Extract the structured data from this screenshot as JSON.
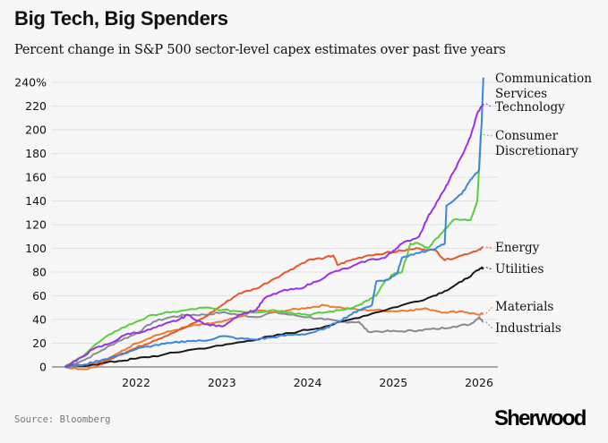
{
  "header": {
    "title": "Big Tech, Big Spenders",
    "subtitle": "Percent change in S&P 500 sector-level capex estimates over past five years"
  },
  "footer": {
    "source": "Source: Bloomberg",
    "logo": "Sherwood"
  },
  "chart_data": {
    "type": "line",
    "title": "Big Tech, Big Spenders",
    "subtitle": "Percent change in S&P 500 sector-level capex estimates over past five years",
    "xlabel": "",
    "ylabel": "",
    "xlim": [
      2021.17,
      2026.1
    ],
    "ylim": [
      0,
      240
    ],
    "x_ticks": [
      2022,
      2023,
      2024,
      2025,
      2026
    ],
    "x_tick_labels": [
      "2022",
      "2023",
      "2024",
      "2025",
      "2026"
    ],
    "y_ticks": [
      0,
      20,
      40,
      60,
      80,
      100,
      120,
      140,
      160,
      180,
      200,
      220,
      240
    ],
    "y_tick_labels": [
      "0",
      "20",
      "40",
      "60",
      "80",
      "100",
      "120",
      "140",
      "160",
      "180",
      "200",
      "220",
      "240%"
    ],
    "grid": true,
    "legend": "direct-labels-right",
    "series": [
      {
        "name": "Communication Services",
        "label_lines": [
          "Communication",
          "Services"
        ],
        "color": "#3a86e0",
        "points": [
          [
            2021.17,
            0
          ],
          [
            2021.4,
            2
          ],
          [
            2021.6,
            6
          ],
          [
            2021.8,
            10
          ],
          [
            2022.0,
            15
          ],
          [
            2022.2,
            18
          ],
          [
            2022.4,
            20
          ],
          [
            2022.6,
            22
          ],
          [
            2022.8,
            22
          ],
          [
            2023.0,
            26
          ],
          [
            2023.2,
            24
          ],
          [
            2023.4,
            23
          ],
          [
            2023.6,
            25
          ],
          [
            2023.8,
            27
          ],
          [
            2024.0,
            28
          ],
          [
            2024.2,
            32
          ],
          [
            2024.35,
            38
          ],
          [
            2024.5,
            44
          ],
          [
            2024.6,
            48
          ],
          [
            2024.75,
            52
          ],
          [
            2024.8,
            72
          ],
          [
            2024.95,
            74
          ],
          [
            2025.05,
            80
          ],
          [
            2025.1,
            92
          ],
          [
            2025.3,
            96
          ],
          [
            2025.5,
            100
          ],
          [
            2025.6,
            104
          ],
          [
            2025.62,
            136
          ],
          [
            2025.8,
            146
          ],
          [
            2025.9,
            158
          ],
          [
            2026.0,
            166
          ],
          [
            2026.03,
            206
          ],
          [
            2026.05,
            244
          ]
        ]
      },
      {
        "name": "Technology",
        "label_lines": [
          "Technology"
        ],
        "color": "#9b30e8",
        "points": [
          [
            2021.17,
            0
          ],
          [
            2021.3,
            5
          ],
          [
            2021.5,
            15
          ],
          [
            2021.7,
            20
          ],
          [
            2021.9,
            28
          ],
          [
            2022.1,
            30
          ],
          [
            2022.3,
            35
          ],
          [
            2022.5,
            40
          ],
          [
            2022.6,
            44
          ],
          [
            2022.8,
            36
          ],
          [
            2023.0,
            34
          ],
          [
            2023.2,
            44
          ],
          [
            2023.4,
            48
          ],
          [
            2023.5,
            58
          ],
          [
            2023.7,
            64
          ],
          [
            2023.9,
            66
          ],
          [
            2024.1,
            72
          ],
          [
            2024.3,
            80
          ],
          [
            2024.5,
            84
          ],
          [
            2024.7,
            90
          ],
          [
            2024.9,
            92
          ],
          [
            2025.0,
            98
          ],
          [
            2025.1,
            104
          ],
          [
            2025.3,
            110
          ],
          [
            2025.4,
            126
          ],
          [
            2025.5,
            138
          ],
          [
            2025.6,
            150
          ],
          [
            2025.7,
            164
          ],
          [
            2025.8,
            178
          ],
          [
            2025.9,
            194
          ],
          [
            2025.98,
            214
          ],
          [
            2026.05,
            222
          ]
        ]
      },
      {
        "name": "Consumer Discretionary",
        "label_lines": [
          "Consumer",
          "Discretionary"
        ],
        "color": "#56d13a",
        "points": [
          [
            2021.17,
            0
          ],
          [
            2021.35,
            8
          ],
          [
            2021.55,
            20
          ],
          [
            2021.75,
            30
          ],
          [
            2022.0,
            38
          ],
          [
            2022.2,
            44
          ],
          [
            2022.4,
            46
          ],
          [
            2022.6,
            48
          ],
          [
            2022.8,
            50
          ],
          [
            2023.0,
            48
          ],
          [
            2023.2,
            47
          ],
          [
            2023.4,
            46
          ],
          [
            2023.6,
            48
          ],
          [
            2023.8,
            46
          ],
          [
            2024.0,
            44
          ],
          [
            2024.2,
            46
          ],
          [
            2024.4,
            48
          ],
          [
            2024.6,
            52
          ],
          [
            2024.7,
            56
          ],
          [
            2024.8,
            60
          ],
          [
            2024.9,
            72
          ],
          [
            2025.0,
            78
          ],
          [
            2025.1,
            80
          ],
          [
            2025.2,
            104
          ],
          [
            2025.3,
            104
          ],
          [
            2025.4,
            100
          ],
          [
            2025.55,
            112
          ],
          [
            2025.7,
            124
          ],
          [
            2025.9,
            124
          ],
          [
            2025.98,
            140
          ],
          [
            2026.02,
            196
          ]
        ]
      },
      {
        "name": "Energy",
        "label_lines": [
          "Energy"
        ],
        "color": "#e8572a",
        "points": [
          [
            2021.17,
            0
          ],
          [
            2021.4,
            2
          ],
          [
            2021.6,
            4
          ],
          [
            2021.8,
            10
          ],
          [
            2022.0,
            16
          ],
          [
            2022.2,
            22
          ],
          [
            2022.4,
            28
          ],
          [
            2022.6,
            34
          ],
          [
            2022.8,
            42
          ],
          [
            2023.0,
            52
          ],
          [
            2023.2,
            62
          ],
          [
            2023.4,
            66
          ],
          [
            2023.6,
            74
          ],
          [
            2023.8,
            82
          ],
          [
            2024.0,
            90
          ],
          [
            2024.2,
            92
          ],
          [
            2024.3,
            94
          ],
          [
            2024.35,
            86
          ],
          [
            2024.5,
            90
          ],
          [
            2024.7,
            94
          ],
          [
            2024.9,
            96
          ],
          [
            2025.1,
            98
          ],
          [
            2025.3,
            100
          ],
          [
            2025.5,
            98
          ],
          [
            2025.6,
            90
          ],
          [
            2025.8,
            94
          ],
          [
            2026.0,
            99
          ],
          [
            2026.05,
            101
          ]
        ]
      },
      {
        "name": "Utilities",
        "label_lines": [
          "Utilities"
        ],
        "color": "#1a1a1a",
        "points": [
          [
            2021.17,
            0
          ],
          [
            2021.5,
            2
          ],
          [
            2021.8,
            5
          ],
          [
            2022.0,
            7
          ],
          [
            2022.3,
            10
          ],
          [
            2022.6,
            14
          ],
          [
            2023.0,
            18
          ],
          [
            2023.3,
            22
          ],
          [
            2023.6,
            26
          ],
          [
            2023.9,
            30
          ],
          [
            2024.2,
            34
          ],
          [
            2024.5,
            40
          ],
          [
            2024.8,
            46
          ],
          [
            2025.1,
            52
          ],
          [
            2025.4,
            58
          ],
          [
            2025.6,
            64
          ],
          [
            2025.8,
            72
          ],
          [
            2026.0,
            82
          ],
          [
            2026.05,
            84
          ]
        ]
      },
      {
        "name": "Materials",
        "label_lines": [
          "Materials"
        ],
        "color": "#f07a2e",
        "points": [
          [
            2021.17,
            0
          ],
          [
            2021.4,
            -2
          ],
          [
            2021.6,
            2
          ],
          [
            2021.8,
            12
          ],
          [
            2022.0,
            20
          ],
          [
            2022.2,
            26
          ],
          [
            2022.4,
            30
          ],
          [
            2022.6,
            34
          ],
          [
            2022.8,
            36
          ],
          [
            2023.0,
            38
          ],
          [
            2023.2,
            42
          ],
          [
            2023.4,
            48
          ],
          [
            2023.6,
            46
          ],
          [
            2023.8,
            48
          ],
          [
            2024.0,
            50
          ],
          [
            2024.2,
            52
          ],
          [
            2024.4,
            50
          ],
          [
            2024.6,
            48
          ],
          [
            2024.8,
            48
          ],
          [
            2025.0,
            47
          ],
          [
            2025.2,
            48
          ],
          [
            2025.4,
            49
          ],
          [
            2025.6,
            46
          ],
          [
            2025.8,
            47
          ],
          [
            2026.0,
            44
          ],
          [
            2026.05,
            45
          ]
        ]
      },
      {
        "name": "Industrials",
        "label_lines": [
          "Industrials"
        ],
        "color": "#8a8a96",
        "points": [
          [
            2021.17,
            0
          ],
          [
            2021.4,
            6
          ],
          [
            2021.6,
            14
          ],
          [
            2021.8,
            22
          ],
          [
            2022.0,
            28
          ],
          [
            2022.2,
            38
          ],
          [
            2022.4,
            42
          ],
          [
            2022.6,
            44
          ],
          [
            2022.8,
            44
          ],
          [
            2023.0,
            46
          ],
          [
            2023.2,
            44
          ],
          [
            2023.4,
            42
          ],
          [
            2023.6,
            46
          ],
          [
            2023.8,
            44
          ],
          [
            2024.0,
            42
          ],
          [
            2024.2,
            40
          ],
          [
            2024.4,
            38
          ],
          [
            2024.6,
            38
          ],
          [
            2024.7,
            30
          ],
          [
            2024.9,
            30
          ],
          [
            2025.1,
            30
          ],
          [
            2025.3,
            31
          ],
          [
            2025.5,
            32
          ],
          [
            2025.7,
            34
          ],
          [
            2025.9,
            36
          ],
          [
            2026.0,
            42
          ],
          [
            2026.05,
            38
          ]
        ]
      }
    ]
  }
}
